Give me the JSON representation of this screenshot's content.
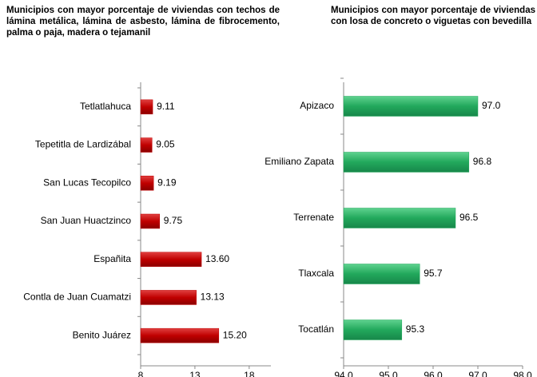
{
  "chart_data": [
    {
      "type": "bar",
      "orientation": "horizontal",
      "title": "Municipios con mayor porcentaje de  viviendas con techos de lámina metálica, lámina de asbesto, lámina de fibrocemento, palma o paja, madera o tejamanil",
      "categories": [
        "Tetlatlahuca",
        "Tepetitla de Lardizábal",
        "San Lucas Tecopilco",
        "San Juan Huactzinco",
        "Españita",
        "Contla de Juan Cuamatzi",
        "Benito Juárez"
      ],
      "values": [
        9.11,
        9.05,
        9.19,
        9.75,
        13.6,
        13.13,
        15.2
      ],
      "value_labels": [
        "9.11",
        "9.05",
        "9.19",
        "9.75",
        "13.60",
        "13.13",
        "15.20"
      ],
      "color": "#c00000",
      "xlim": [
        8,
        20
      ],
      "xticks": [
        8,
        13,
        18
      ]
    },
    {
      "type": "bar",
      "orientation": "horizontal",
      "title": "Municipios con mayor porcentaje de viviendas con losa de concreto o viguetas con bevedilla",
      "categories": [
        "Apizaco",
        "Emiliano Zapata",
        "Terrenate",
        "Tlaxcala",
        "Tocatlán"
      ],
      "values": [
        97,
        96.8,
        96.5,
        95.7,
        95.3
      ],
      "value_labels": [
        "97.0",
        "96.8",
        "96.5",
        "95.7",
        "95.3"
      ],
      "color": "#22a85c",
      "xlim": [
        94,
        98
      ],
      "xticks": [
        {
          "value": 94,
          "label": "94.0"
        },
        {
          "value": 95,
          "label": "95.0"
        },
        {
          "value": 96,
          "label": "96.0"
        },
        {
          "value": 97,
          "label": "97.0"
        },
        {
          "value": 98,
          "label": "98.0"
        }
      ]
    }
  ]
}
